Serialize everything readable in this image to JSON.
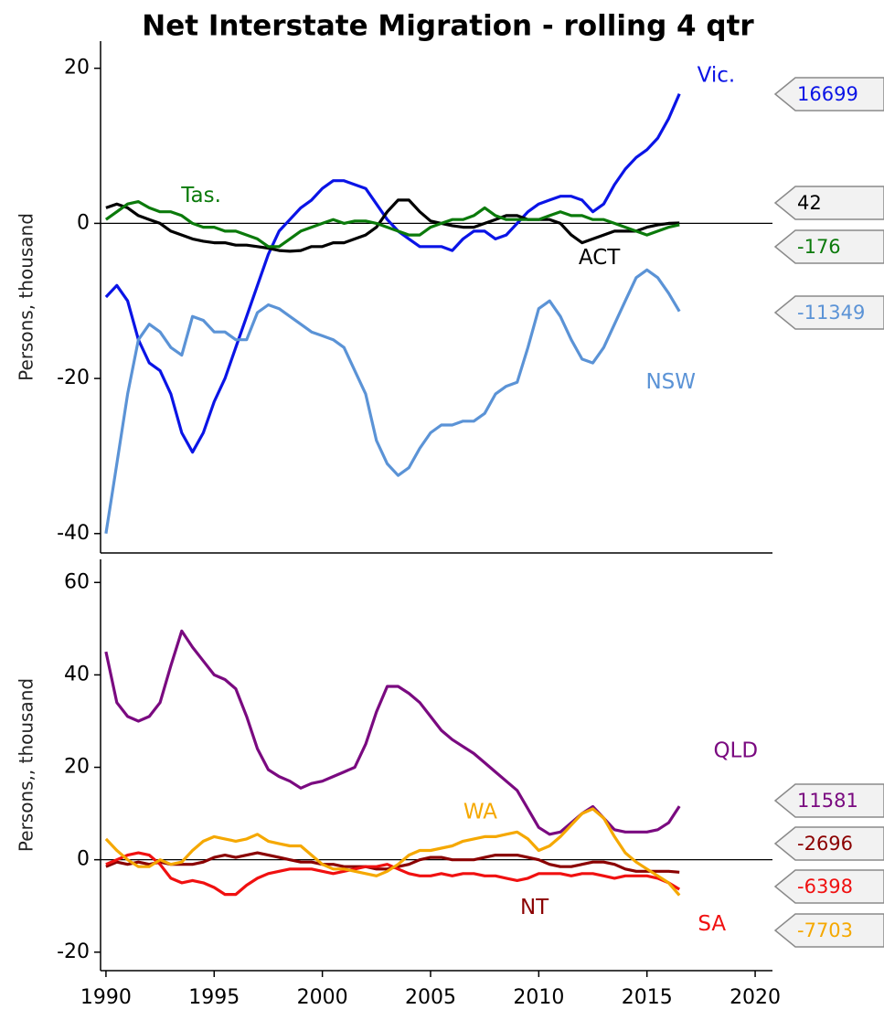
{
  "title": "Net Interstate Migration - rolling 4 qtr",
  "chart_data": [
    {
      "type": "line",
      "ylabel": "Persons, thousand",
      "x": [
        1990,
        1990.5,
        1991,
        1991.5,
        1992,
        1992.5,
        1993,
        1993.5,
        1994,
        1994.5,
        1995,
        1995.5,
        1996,
        1996.5,
        1997,
        1997.5,
        1998,
        1998.5,
        1999,
        1999.5,
        2000,
        2000.5,
        2001,
        2001.5,
        2002,
        2002.5,
        2003,
        2003.5,
        2004,
        2004.5,
        2005,
        2005.5,
        2006,
        2006.5,
        2007,
        2007.5,
        2008,
        2008.5,
        2009,
        2009.5,
        2010,
        2010.5,
        2011,
        2011.5,
        2012,
        2012.5,
        2013,
        2013.5,
        2014,
        2014.5,
        2015,
        2015.5,
        2016,
        2016.5
      ],
      "xlim": [
        1989.75,
        2020.8
      ],
      "ylim": [
        -42.5,
        23.5
      ],
      "yticks": [
        -40,
        -20,
        0,
        20
      ],
      "hline": 0,
      "series": [
        {
          "name": "Vic.",
          "color": "#0a14e6",
          "values": [
            -9.5,
            -8,
            -10,
            -15,
            -18,
            -19,
            -22,
            -27,
            -29.5,
            -27,
            -23,
            -20,
            -16,
            -12,
            -8,
            -4,
            -1,
            0.5,
            2,
            3,
            4.5,
            5.5,
            5.5,
            5,
            4.5,
            2.5,
            0.5,
            -1,
            -2,
            -3,
            -3,
            -3,
            -3.5,
            -2,
            -1,
            -1,
            -2,
            -1.5,
            0,
            1.5,
            2.5,
            3,
            3.5,
            3.5,
            3,
            1.5,
            2.5,
            5,
            7,
            8.5,
            9.5,
            11,
            13.5,
            16.699
          ],
          "value_labels": [
            null,
            null,
            null,
            null,
            null,
            null,
            null,
            null,
            null,
            null,
            null,
            null,
            null,
            null,
            null,
            null,
            null,
            null,
            null,
            null,
            null,
            null,
            null,
            null,
            null,
            null,
            null,
            null,
            null,
            null,
            null,
            null,
            null,
            null,
            null,
            null,
            null,
            null,
            null,
            null,
            null,
            null,
            null,
            null,
            null,
            null,
            null,
            null,
            null,
            null,
            null,
            null,
            null,
            "16699"
          ]
        },
        {
          "name": "ACT",
          "color": "#000000",
          "values": [
            2,
            2.5,
            2,
            1,
            0.5,
            0,
            -1,
            -1.5,
            -2,
            -2.3,
            -2.5,
            -2.5,
            -2.8,
            -2.8,
            -3,
            -3.2,
            -3.5,
            -3.6,
            -3.5,
            -3,
            -3,
            -2.5,
            -2.5,
            -2,
            -1.5,
            -0.5,
            1.5,
            3,
            3,
            1.5,
            0.3,
            0,
            -0.3,
            -0.5,
            -0.5,
            0,
            0.5,
            1,
            1,
            0.5,
            0.5,
            0.5,
            0,
            -1.5,
            -2.5,
            -2,
            -1.5,
            -1,
            -1,
            -1,
            -0.5,
            -0.2,
            0,
            0.042
          ],
          "value_labels": [
            null,
            null,
            null,
            null,
            null,
            null,
            null,
            null,
            null,
            null,
            null,
            null,
            null,
            null,
            null,
            null,
            null,
            null,
            null,
            null,
            null,
            null,
            null,
            null,
            null,
            null,
            null,
            null,
            null,
            null,
            null,
            null,
            null,
            null,
            null,
            null,
            null,
            null,
            null,
            null,
            null,
            null,
            null,
            null,
            null,
            null,
            null,
            null,
            null,
            null,
            null,
            null,
            null,
            "42"
          ]
        },
        {
          "name": "Tas.",
          "color": "#0b7a0b",
          "values": [
            0.5,
            1.5,
            2.5,
            2.8,
            2,
            1.5,
            1.5,
            1,
            0,
            -0.5,
            -0.5,
            -1,
            -1,
            -1.5,
            -2,
            -3,
            -3,
            -2,
            -1,
            -0.5,
            0,
            0.5,
            0,
            0.3,
            0.3,
            0,
            -0.5,
            -1,
            -1.5,
            -1.5,
            -0.5,
            0,
            0.5,
            0.5,
            1,
            2,
            1,
            0.5,
            0.5,
            0.5,
            0.5,
            1,
            1.5,
            1,
            1,
            0.5,
            0.5,
            0,
            -0.5,
            -1,
            -1.5,
            -1,
            -0.5,
            -0.176
          ],
          "value_labels": [
            null,
            null,
            null,
            null,
            null,
            null,
            null,
            null,
            null,
            null,
            null,
            null,
            null,
            null,
            null,
            null,
            null,
            null,
            null,
            null,
            null,
            null,
            null,
            null,
            null,
            null,
            null,
            null,
            null,
            null,
            null,
            null,
            null,
            null,
            null,
            null,
            null,
            null,
            null,
            null,
            null,
            null,
            null,
            null,
            null,
            null,
            null,
            null,
            null,
            null,
            null,
            null,
            null,
            "-176"
          ]
        },
        {
          "name": "NSW",
          "color": "#5b93d6",
          "values": [
            -40,
            -31,
            -22,
            -15,
            -13,
            -14,
            -16,
            -17,
            -12,
            -12.5,
            -14,
            -14,
            -15,
            -15,
            -11.5,
            -10.5,
            -11,
            -12,
            -13,
            -14,
            -14.5,
            -15,
            -16,
            -19,
            -22,
            -28,
            -31,
            -32.5,
            -31.5,
            -29,
            -27,
            -26,
            -26,
            -25.5,
            -25.5,
            -24.5,
            -22,
            -21,
            -20.5,
            -16,
            -11,
            -10,
            -12,
            -15,
            -17.5,
            -18,
            -16,
            -13,
            -10,
            -7,
            -6,
            -7,
            -9,
            -11.349
          ],
          "value_labels": [
            null,
            null,
            null,
            null,
            null,
            null,
            null,
            null,
            null,
            null,
            null,
            null,
            null,
            null,
            null,
            null,
            null,
            null,
            null,
            null,
            null,
            null,
            null,
            null,
            null,
            null,
            null,
            null,
            null,
            null,
            null,
            null,
            null,
            null,
            null,
            null,
            null,
            null,
            null,
            null,
            null,
            null,
            null,
            null,
            null,
            null,
            null,
            null,
            null,
            null,
            null,
            null,
            null,
            "-11349"
          ]
        }
      ]
    },
    {
      "type": "line",
      "ylabel": "Persons,, thousand",
      "x": [
        1990,
        1990.5,
        1991,
        1991.5,
        1992,
        1992.5,
        1993,
        1993.5,
        1994,
        1994.5,
        1995,
        1995.5,
        1996,
        1996.5,
        1997,
        1997.5,
        1998,
        1998.5,
        1999,
        1999.5,
        2000,
        2000.5,
        2001,
        2001.5,
        2002,
        2002.5,
        2003,
        2003.5,
        2004,
        2004.5,
        2005,
        2005.5,
        2006,
        2006.5,
        2007,
        2007.5,
        2008,
        2008.5,
        2009,
        2009.5,
        2010,
        2010.5,
        2011,
        2011.5,
        2012,
        2012.5,
        2013,
        2013.5,
        2014,
        2014.5,
        2015,
        2015.5,
        2016,
        2016.5
      ],
      "xlim": [
        1989.75,
        2020.8
      ],
      "xticks": [
        1990,
        1995,
        2000,
        2005,
        2010,
        2015,
        2020
      ],
      "ylim": [
        -24,
        65
      ],
      "yticks": [
        -20,
        0,
        20,
        40,
        60
      ],
      "hline": 0,
      "series": [
        {
          "name": "QLD",
          "color": "#7a0a80",
          "values": [
            45,
            34,
            31,
            30,
            31,
            34,
            42,
            49.5,
            46,
            43,
            40,
            39,
            37,
            31,
            24,
            19.5,
            18,
            17,
            15.5,
            16.5,
            17,
            18,
            19,
            20,
            25,
            32,
            37.5,
            37.5,
            36,
            34,
            31,
            28,
            26,
            24.5,
            23,
            21,
            19,
            17,
            15,
            11,
            7,
            5.5,
            6,
            8,
            10,
            11.5,
            9,
            6.5,
            6,
            6,
            6,
            6.5,
            8,
            11.581
          ],
          "value_labels": [
            null,
            null,
            null,
            null,
            null,
            null,
            null,
            null,
            null,
            null,
            null,
            null,
            null,
            null,
            null,
            null,
            null,
            null,
            null,
            null,
            null,
            null,
            null,
            null,
            null,
            null,
            null,
            null,
            null,
            null,
            null,
            null,
            null,
            null,
            null,
            null,
            null,
            null,
            null,
            null,
            null,
            null,
            null,
            null,
            null,
            null,
            null,
            null,
            null,
            null,
            null,
            null,
            null,
            "11581"
          ]
        },
        {
          "name": "NT",
          "color": "#8b0000",
          "values": [
            -1.5,
            -0.5,
            -1,
            -0.5,
            -1,
            -0.5,
            -1,
            -1,
            -1,
            -0.5,
            0.5,
            1,
            0.5,
            1,
            1.5,
            1,
            0.5,
            0,
            -0.5,
            -0.5,
            -1,
            -1,
            -1.5,
            -1.5,
            -1.5,
            -2,
            -2,
            -1.5,
            -1,
            0,
            0.5,
            0.5,
            0,
            0,
            0,
            0.5,
            1,
            1,
            1,
            0.5,
            0,
            -1,
            -1.5,
            -1.5,
            -1,
            -0.5,
            -0.5,
            -1,
            -2,
            -2.5,
            -2.5,
            -2.5,
            -2.5,
            -2.696
          ],
          "value_labels": [
            null,
            null,
            null,
            null,
            null,
            null,
            null,
            null,
            null,
            null,
            null,
            null,
            null,
            null,
            null,
            null,
            null,
            null,
            null,
            null,
            null,
            null,
            null,
            null,
            null,
            null,
            null,
            null,
            null,
            null,
            null,
            null,
            null,
            null,
            null,
            null,
            null,
            null,
            null,
            null,
            null,
            null,
            null,
            null,
            null,
            null,
            null,
            null,
            null,
            null,
            null,
            null,
            null,
            "-2696"
          ]
        },
        {
          "name": "SA",
          "color": "#f01010",
          "values": [
            -1,
            0,
            1,
            1.5,
            1,
            -1,
            -4,
            -5,
            -4.5,
            -5,
            -6,
            -7.5,
            -7.5,
            -5.5,
            -4,
            -3,
            -2.5,
            -2,
            -2,
            -2,
            -2.5,
            -3,
            -2.5,
            -2,
            -1.5,
            -1.5,
            -1,
            -2,
            -3,
            -3.5,
            -3.5,
            -3,
            -3.5,
            -3,
            -3,
            -3.5,
            -3.5,
            -4,
            -4.5,
            -4,
            -3,
            -3,
            -3,
            -3.5,
            -3,
            -3,
            -3.5,
            -4,
            -3.5,
            -3.5,
            -3.5,
            -4,
            -5,
            -6.398
          ],
          "value_labels": [
            null,
            null,
            null,
            null,
            null,
            null,
            null,
            null,
            null,
            null,
            null,
            null,
            null,
            null,
            null,
            null,
            null,
            null,
            null,
            null,
            null,
            null,
            null,
            null,
            null,
            null,
            null,
            null,
            null,
            null,
            null,
            null,
            null,
            null,
            null,
            null,
            null,
            null,
            null,
            null,
            null,
            null,
            null,
            null,
            null,
            null,
            null,
            null,
            null,
            null,
            null,
            null,
            null,
            "-6398"
          ]
        },
        {
          "name": "WA",
          "color": "#f5a800",
          "values": [
            4.5,
            2,
            0,
            -1.5,
            -1.5,
            0,
            -1,
            -0.5,
            2,
            4,
            5,
            4.5,
            4,
            4.5,
            5.5,
            4,
            3.5,
            3,
            3,
            1,
            -1,
            -2,
            -2,
            -2.5,
            -3,
            -3.5,
            -2.5,
            -1,
            1,
            2,
            2,
            2.5,
            3,
            4,
            4.5,
            5,
            5,
            5.5,
            6,
            4.5,
            2,
            3,
            5,
            7.5,
            10,
            11,
            9,
            5,
            1.5,
            -0.5,
            -2,
            -3.5,
            -5,
            -7.703
          ],
          "value_labels": [
            null,
            null,
            null,
            null,
            null,
            null,
            null,
            null,
            null,
            null,
            null,
            null,
            null,
            null,
            null,
            null,
            null,
            null,
            null,
            null,
            null,
            null,
            null,
            null,
            null,
            null,
            null,
            null,
            null,
            null,
            null,
            null,
            null,
            null,
            null,
            null,
            null,
            null,
            null,
            null,
            null,
            null,
            null,
            null,
            null,
            null,
            null,
            null,
            null,
            null,
            null,
            null,
            null,
            "-7703"
          ]
        }
      ]
    }
  ]
}
